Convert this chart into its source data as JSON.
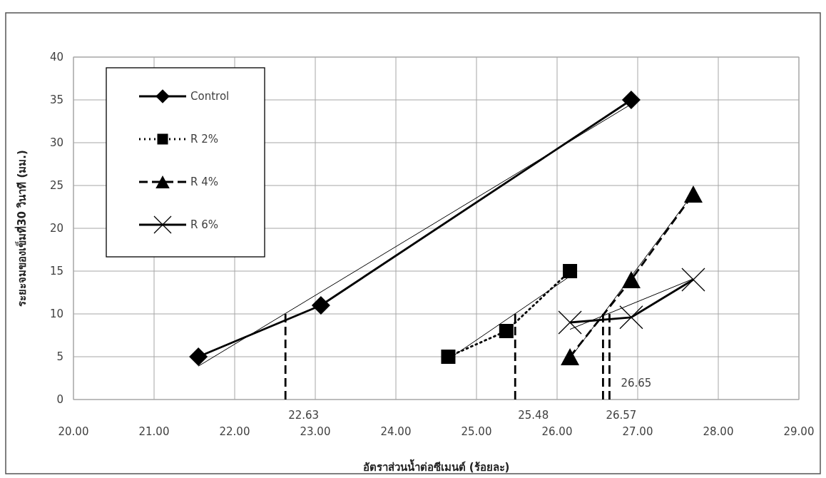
{
  "chart_data": {
    "type": "line",
    "xlabel": "อัตราส่วนน้ำต่อซีเมนต์ (ร้อยละ)",
    "ylabel": "ระยะจมของเข็มที่30 วินาที (มม.)",
    "xlim": [
      20,
      29
    ],
    "ylim": [
      0,
      40
    ],
    "xticks": [
      {
        "value": 20,
        "label": "20.00"
      },
      {
        "value": 21,
        "label": "21.00"
      },
      {
        "value": 22,
        "label": "22.00"
      },
      {
        "value": 23,
        "label": "23.00"
      },
      {
        "value": 24,
        "label": "24.00"
      },
      {
        "value": 25,
        "label": "25.00"
      },
      {
        "value": 26,
        "label": "26.00"
      },
      {
        "value": 27,
        "label": "27.00"
      },
      {
        "value": 28,
        "label": "28.00"
      },
      {
        "value": 29,
        "label": "29.00"
      }
    ],
    "yticks": [
      0,
      5,
      10,
      15,
      20,
      25,
      30,
      35,
      40
    ],
    "grid": true,
    "legend": "top left",
    "series": [
      {
        "name": "Control",
        "color": "#000000",
        "marker": "diamond",
        "line_style": "solid",
        "x": [
          21.55,
          23.07,
          26.92
        ],
        "values": [
          5,
          11,
          35
        ]
      },
      {
        "name": "R 2%",
        "color": "#000000",
        "marker": "square",
        "line_style": "dotted",
        "x": [
          24.65,
          25.37,
          26.16
        ],
        "values": [
          5,
          8,
          15
        ]
      },
      {
        "name": "R 4%",
        "color": "#000000",
        "marker": "triangle",
        "line_style": "dashed",
        "x": [
          26.16,
          26.92,
          27.69
        ],
        "values": [
          5,
          14,
          24
        ]
      },
      {
        "name": "R 6%",
        "color": "#000000",
        "marker": "cross",
        "line_style": "solid",
        "x": [
          26.16,
          26.92,
          27.69
        ],
        "values": [
          9,
          9.6,
          14
        ]
      },
      {
        "color": "#000000",
        "x": [
          21.55,
          26.92
        ],
        "values": [
          3.9,
          34.5
        ]
      },
      {
        "color": "#000000",
        "x": [
          24.65,
          26.16
        ],
        "values": [
          4.7,
          14.4
        ]
      },
      {
        "color": "#000000",
        "x": [
          26.16,
          27.69
        ],
        "values": [
          4.8,
          24.1
        ]
      },
      {
        "color": "#000000",
        "x": [
          26.16,
          27.69
        ],
        "values": [
          8.2,
          14.1
        ]
      },
      {
        "color": "#000000",
        "line_style": "dashed",
        "x": [
          22.63,
          22.63
        ],
        "values": [
          0,
          10
        ]
      },
      {
        "color": "#000000",
        "line_style": "dashed",
        "x": [
          25.48,
          25.48
        ],
        "values": [
          0,
          10
        ]
      },
      {
        "color": "#000000",
        "line_style": "dashed",
        "x": [
          26.57,
          26.57
        ],
        "values": [
          0,
          10
        ]
      },
      {
        "color": "#000000",
        "line_style": "dashed",
        "x": [
          26.65,
          26.65
        ],
        "values": [
          0,
          10
        ]
      }
    ],
    "annotations": [
      {
        "text": "22.63",
        "x": 22.63,
        "y": 0
      },
      {
        "text": "25.48",
        "x": 25.48,
        "y": 0
      },
      {
        "text": "26.57",
        "x": 26.57,
        "y": 0
      },
      {
        "text": "26.65",
        "x": 26.65,
        "y": 1.5
      }
    ]
  }
}
